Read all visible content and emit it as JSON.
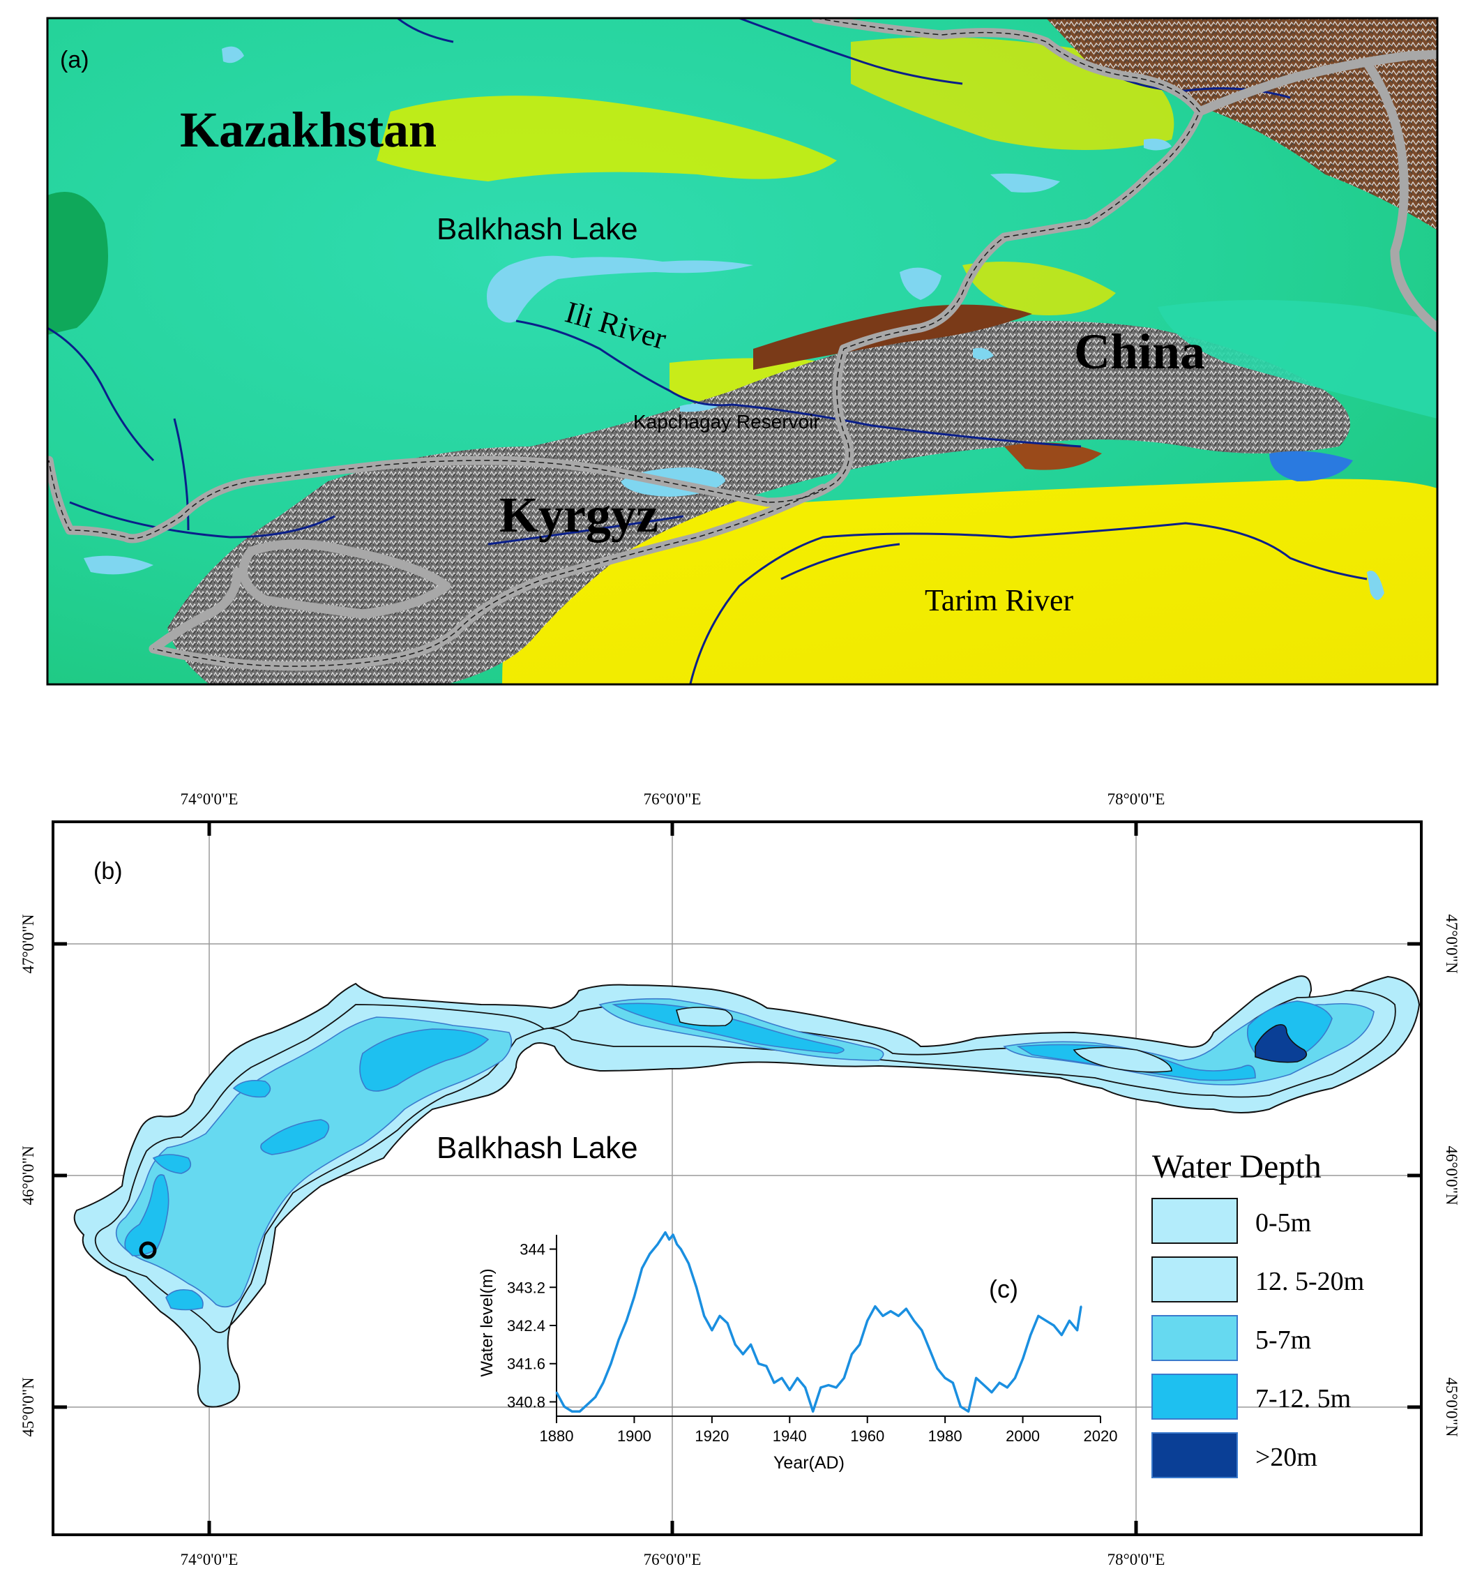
{
  "panel_a": {
    "label": "(a)",
    "countries": {
      "kazakhstan": "Kazakhstan",
      "china": "China",
      "kyrgyz": "Kyrgyz"
    },
    "features": {
      "balkhash": "Balkhash Lake",
      "ili": "Ili River",
      "kapchagay": "Kapchagay Reservoir",
      "tarim": "Tarim River"
    },
    "colors": {
      "lowland": "#1fcc8a",
      "plain": "#2fe0b4",
      "upland": "#dff000",
      "desert": "#f2f200",
      "mountain": "#8a3a10",
      "peak": "#9c9c9c",
      "lake": "#7fd6f0",
      "river": "#0a1f8a",
      "border": "#a8a8a8"
    }
  },
  "panel_b": {
    "label": "(b)",
    "lake_label": "Balkhash Lake",
    "lon_ticks": [
      "74°0'0\"E",
      "76°0'0\"E",
      "78°0'0\"E"
    ],
    "lat_ticks": [
      "47°0'0\"N",
      "46°0'0\"N",
      "45°0'0\"N"
    ],
    "legend": {
      "title": "Water Depth",
      "items": [
        {
          "label": "0-5m",
          "color": "#b3ecfb"
        },
        {
          "label": "12. 5-20m",
          "color": "#b3ecfb"
        },
        {
          "label": "5-7m",
          "color": "#66d9f0"
        },
        {
          "label": "7-12. 5m",
          "color": "#1ec0f0"
        },
        {
          "label": ">20m",
          "color": "#0a3f96"
        }
      ]
    }
  },
  "chart_data": {
    "type": "line",
    "title": "(c)",
    "xlabel": "Year(AD)",
    "ylabel": "Water level(m)",
    "xlim": [
      1880,
      2020
    ],
    "ylim": [
      340.5,
      344.3
    ],
    "xticks": [
      1880,
      1900,
      1920,
      1940,
      1960,
      1980,
      2000,
      2020
    ],
    "yticks": [
      340.8,
      341.6,
      342.4,
      343.2,
      344
    ],
    "color": "#1a8fe0",
    "x": [
      1880,
      1882,
      1884,
      1886,
      1888,
      1890,
      1892,
      1894,
      1896,
      1898,
      1900,
      1902,
      1904,
      1906,
      1908,
      1909,
      1910,
      1911,
      1912,
      1914,
      1916,
      1918,
      1920,
      1922,
      1924,
      1926,
      1928,
      1930,
      1932,
      1934,
      1936,
      1938,
      1940,
      1942,
      1944,
      1946,
      1948,
      1950,
      1952,
      1954,
      1956,
      1958,
      1960,
      1962,
      1964,
      1966,
      1968,
      1970,
      1972,
      1974,
      1976,
      1978,
      1980,
      1982,
      1984,
      1986,
      1988,
      1990,
      1992,
      1994,
      1996,
      1998,
      2000,
      2002,
      2004,
      2006,
      2008,
      2010,
      2012,
      2014,
      2015
    ],
    "y": [
      341.0,
      340.7,
      340.6,
      340.6,
      340.75,
      340.9,
      341.2,
      341.6,
      342.1,
      342.5,
      343.0,
      343.6,
      343.9,
      344.1,
      344.35,
      344.2,
      344.3,
      344.1,
      344.0,
      343.7,
      343.2,
      342.6,
      342.3,
      342.6,
      342.45,
      342.0,
      341.8,
      342.0,
      341.6,
      341.55,
      341.2,
      341.3,
      341.05,
      341.3,
      341.1,
      340.6,
      341.1,
      341.15,
      341.1,
      341.3,
      341.8,
      342.0,
      342.5,
      342.8,
      342.6,
      342.7,
      342.6,
      342.75,
      342.5,
      342.3,
      341.9,
      341.5,
      341.3,
      341.2,
      340.7,
      340.6,
      341.3,
      341.15,
      341.0,
      341.2,
      341.1,
      341.3,
      341.7,
      342.2,
      342.6,
      342.5,
      342.4,
      342.2,
      342.5,
      342.3,
      342.8
    ]
  }
}
